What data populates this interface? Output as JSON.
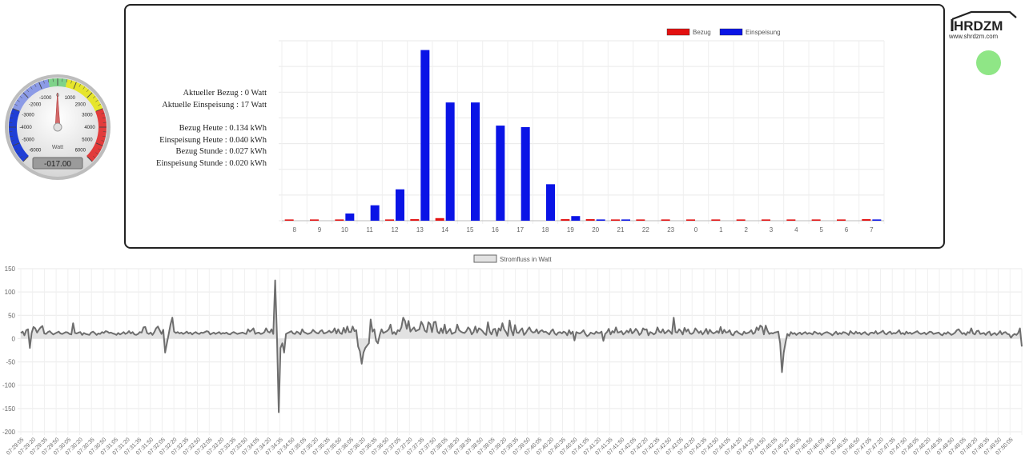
{
  "gauge": {
    "unit": "Watt",
    "display_value": "-017.00",
    "value": -17,
    "min": -6000,
    "max": 6000,
    "tick_labels": [
      "-6000",
      "-5000",
      "-4000",
      "-3000",
      "-2000",
      "-1000",
      "0",
      "1000",
      "2000",
      "3000",
      "4000",
      "5000",
      "6000"
    ],
    "colors": {
      "negative": "#1f3fd6",
      "positive": "#e23b3b",
      "mid_positive": "#e6e52b",
      "center": "#7fd38a"
    }
  },
  "stats": {
    "aktueller_bezug": "Aktueller Bezug :        0 Watt",
    "aktuelle_einspeisung": "Aktuelle Einspeisung :      17 Watt",
    "bezug_heute": "Bezug Heute : 0.134 kWh",
    "einspeisung_heute": "Einspeisung Heute : 0.040 kWh",
    "bezug_stunde": "Bezug Stunde : 0.027 kWh",
    "einspeisung_stunde": "Einspeisung Stunde : 0.020 kWh"
  },
  "logo": {
    "brand": "HRDZM",
    "url_text": "www.shrdzm.com"
  },
  "status": {
    "color": "#8fe686"
  },
  "chart_data": [
    {
      "type": "bar",
      "categories": [
        "8",
        "9",
        "10",
        "11",
        "12",
        "13",
        "14",
        "15",
        "16",
        "17",
        "18",
        "19",
        "20",
        "21",
        "22",
        "23",
        "0",
        "1",
        "2",
        "3",
        "4",
        "5",
        "6",
        "7"
      ],
      "series": [
        {
          "name": "Bezug",
          "color": "#e31010",
          "values": [
            0.01,
            0.01,
            0.01,
            0.0,
            0.01,
            0.03,
            0.05,
            0.0,
            0.0,
            0.0,
            0.0,
            0.03,
            0.03,
            0.02,
            0.01,
            0.01,
            0.01,
            0.02,
            0.01,
            0.01,
            0.01,
            0.01,
            0.01,
            0.03
          ]
        },
        {
          "name": "Einspeisung",
          "color": "#0a14e6",
          "values": [
            0.0,
            0.0,
            0.14,
            0.3,
            0.61,
            3.32,
            2.3,
            2.3,
            1.85,
            1.82,
            0.71,
            0.09,
            0.01,
            0.01,
            0.0,
            0.0,
            0.0,
            0.0,
            0.0,
            0.0,
            0.0,
            0.0,
            0.0,
            0.02
          ]
        }
      ],
      "ylim": [
        0,
        3.5
      ],
      "y_ticks": [
        "0",
        "0.5",
        "1.0",
        "1.5",
        "2.0",
        "2.5",
        "3.0",
        "3.5"
      ],
      "legend": "top",
      "grid": true
    },
    {
      "type": "line",
      "series": [
        {
          "name": "Stromfluss in Watt",
          "color": "#6e6e6e",
          "fill": "#e2e2e2"
        }
      ],
      "ylim": [
        -200,
        150
      ],
      "y_ticks": [
        "150",
        "100",
        "50",
        "0",
        "-50",
        "-100",
        "-150",
        "-200"
      ],
      "x_start": "07:29:05",
      "x_interval_seconds": 15,
      "x_label_count": 85,
      "legend": "top",
      "grid": true,
      "values": [
        12,
        15,
        7,
        18,
        20,
        -20,
        12,
        25,
        22,
        13,
        19,
        24,
        27,
        11,
        10,
        14,
        16,
        12,
        9,
        11,
        13,
        15,
        11,
        10,
        12,
        14,
        13,
        10,
        9,
        33,
        12,
        11,
        13,
        14,
        8,
        12,
        10,
        9,
        8,
        13,
        15,
        12,
        8,
        11,
        10,
        14,
        12,
        16,
        15,
        12,
        13,
        11,
        10,
        8,
        12,
        9,
        11,
        14,
        10,
        12,
        16,
        11,
        14,
        9,
        8,
        10,
        14,
        13,
        24,
        25,
        12,
        10,
        13,
        8,
        14,
        22,
        26,
        18,
        10,
        19,
        -30,
        -10,
        10,
        30,
        45,
        15,
        12,
        14,
        11,
        13,
        10,
        12,
        15,
        11,
        13,
        9,
        12,
        14,
        11,
        10,
        13,
        12,
        14,
        16,
        15,
        9,
        11,
        13,
        10,
        12,
        14,
        10,
        12,
        11,
        13,
        10,
        9,
        12,
        14,
        12,
        10,
        11,
        12,
        13,
        11,
        10,
        20,
        15,
        18,
        22,
        10,
        12,
        13,
        10,
        11,
        14,
        22,
        15,
        13,
        20,
        10,
        125,
        10,
        -158,
        -20,
        -10,
        -30,
        10,
        12,
        14,
        16,
        11,
        10,
        15,
        13,
        9,
        20,
        14,
        12,
        10,
        11,
        13,
        19,
        15,
        12,
        11,
        16,
        18,
        11,
        12,
        14,
        17,
        13,
        15,
        22,
        11,
        20,
        12,
        10,
        23,
        13,
        26,
        14,
        14,
        26,
        16,
        18,
        -17,
        -27,
        -54,
        -30,
        -20,
        -15,
        -10,
        41,
        15,
        20,
        -5,
        -10,
        8,
        20,
        12,
        14,
        16,
        20,
        30,
        10,
        14,
        9,
        18,
        16,
        24,
        45,
        38,
        21,
        38,
        15,
        20,
        24,
        16,
        18,
        20,
        36,
        29,
        17,
        14,
        35,
        31,
        14,
        35,
        36,
        15,
        11,
        22,
        12,
        30,
        11,
        16,
        21,
        10,
        12,
        14,
        30,
        18,
        15,
        13,
        12,
        16,
        24,
        20,
        9,
        14,
        26,
        13,
        22,
        20,
        16,
        11,
        8,
        35,
        15,
        9,
        20,
        21,
        6,
        22,
        17,
        33,
        20,
        14,
        6,
        39,
        18,
        7,
        29,
        13,
        12,
        18,
        22,
        8,
        12,
        19,
        24,
        16,
        13,
        14,
        20,
        11,
        16,
        18,
        14,
        15,
        12,
        9,
        16,
        20,
        11,
        8,
        13,
        14,
        11,
        15,
        13,
        7,
        18,
        10,
        15,
        -4,
        14,
        12,
        11,
        14,
        18,
        10,
        5,
        8,
        13,
        11,
        10,
        15,
        12,
        12,
        15,
        -5,
        10,
        14,
        21,
        9,
        16,
        13,
        24,
        13,
        14,
        16,
        9,
        12,
        17,
        13,
        21,
        11,
        15,
        21,
        16,
        8,
        12,
        22,
        19,
        20,
        7,
        14,
        12,
        9,
        12,
        24,
        15,
        13,
        20,
        11,
        14,
        18,
        15,
        10,
        45,
        14,
        13,
        20,
        16,
        9,
        23,
        15,
        20,
        11,
        10,
        13,
        22,
        17,
        12,
        16,
        9,
        14,
        21,
        10,
        19,
        14,
        11,
        13,
        16,
        12,
        25,
        11,
        19,
        13,
        14,
        18,
        9,
        7,
        14,
        16,
        12,
        10,
        8,
        15,
        11,
        12,
        14,
        18,
        10,
        13,
        24,
        18,
        28,
        25,
        9,
        28,
        17,
        10,
        12,
        11,
        13,
        14,
        15,
        -10,
        -72,
        -30,
        -8,
        10,
        6,
        14,
        10,
        12,
        8,
        11,
        13,
        9,
        12,
        14,
        10,
        12,
        11,
        9,
        15,
        13,
        10,
        12,
        8,
        11,
        13,
        14,
        12,
        10,
        7,
        11,
        15,
        9,
        12,
        10,
        14,
        13,
        11,
        8,
        16,
        12,
        10,
        15,
        11,
        13,
        9,
        12,
        14,
        10,
        8,
        12,
        13,
        11,
        16,
        10,
        12,
        14,
        17,
        11,
        9,
        13,
        15,
        10,
        12,
        11,
        14,
        18,
        10,
        12,
        9,
        15,
        11,
        13,
        10,
        12,
        14,
        16,
        12,
        10,
        11,
        13,
        9,
        12,
        15,
        14,
        10,
        11,
        12,
        13,
        9,
        7,
        12,
        10,
        14,
        11,
        8,
        10,
        13,
        18,
        20,
        15,
        10,
        12,
        8,
        14,
        12,
        22,
        11,
        9,
        16,
        17,
        10,
        11,
        12,
        8,
        13,
        15,
        7,
        10,
        12,
        8,
        11,
        16,
        9,
        13,
        14,
        10,
        9,
        2,
        7,
        10,
        8,
        12,
        22,
        -17
      ]
    }
  ]
}
